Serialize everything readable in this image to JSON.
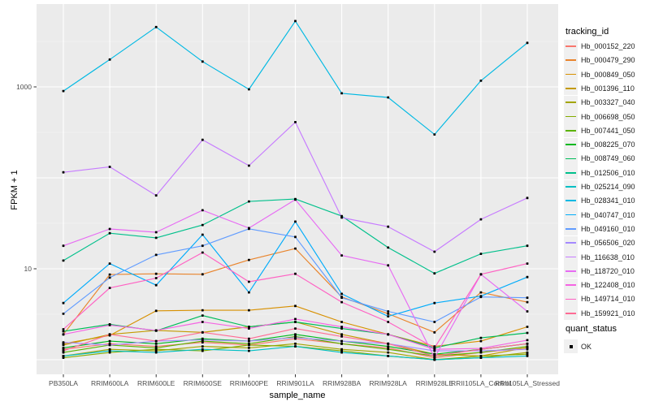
{
  "chart_data": {
    "type": "line",
    "title": "",
    "xlabel": "sample_name",
    "ylabel": "FPKM + 1",
    "y_scale": "log10",
    "ylim": [
      0.65,
      7800
    ],
    "y_ticks": [
      {
        "value": 10,
        "label": "10"
      },
      {
        "value": 1000,
        "label": "1000"
      }
    ],
    "y_gridlines_major": [
      1,
      10,
      100,
      1000
    ],
    "y_gridlines_minor": [
      3.162,
      31.62,
      316.2,
      3162
    ],
    "grid": true,
    "panel_bg": "#EBEBEB",
    "gridline_color": "#FFFFFF",
    "marker": "small-black-square",
    "legend_position": "right",
    "legend_title": "tracking_id",
    "categories": [
      "PB350LA",
      "RRIM600LA",
      "RRIM600LE",
      "RRIM600SE",
      "RRIM600PE",
      "RRIM901LA",
      "RRIM928BA",
      "RRIM928LA",
      "RRIM928LE",
      "RRII105LA_Control",
      "RRII105LA_Stressed"
    ],
    "series": [
      {
        "name": "Hb_000152_220",
        "color": "#F8766D",
        "values": [
          1.3,
          1.5,
          1.4,
          1.55,
          1.45,
          1.7,
          1.5,
          1.35,
          1.05,
          1.2,
          1.35
        ]
      },
      {
        "name": "Hb_000479_290",
        "color": "#E9842C",
        "values": [
          1.9,
          8.65,
          8.8,
          8.7,
          12.5,
          16.7,
          4.9,
          3.2,
          2.0,
          5.5,
          4.3
        ]
      },
      {
        "name": "Hb_000849_050",
        "color": "#D89000",
        "values": [
          1.5,
          1.85,
          3.45,
          3.5,
          3.5,
          3.9,
          2.6,
          1.9,
          1.4,
          1.6,
          2.3
        ]
      },
      {
        "name": "Hb_001396_110",
        "color": "#C49A00",
        "values": [
          1.45,
          1.9,
          2.1,
          2.0,
          2.3,
          2.6,
          1.9,
          1.5,
          1.15,
          1.1,
          1.36
        ]
      },
      {
        "name": "Hb_003327_040",
        "color": "#A3A500",
        "values": [
          1.1,
          1.3,
          1.25,
          1.4,
          1.35,
          1.5,
          1.3,
          1.2,
          1.0,
          1.05,
          1.2
        ]
      },
      {
        "name": "Hb_006698_050",
        "color": "#84AC00",
        "values": [
          1.05,
          1.2,
          1.3,
          1.25,
          1.45,
          1.4,
          1.25,
          1.1,
          1.0,
          1.1,
          1.15
        ]
      },
      {
        "name": "Hb_007441_050",
        "color": "#5BB300",
        "values": [
          1.2,
          1.45,
          1.35,
          1.6,
          1.5,
          1.8,
          1.5,
          1.3,
          1.1,
          1.2,
          1.4
        ]
      },
      {
        "name": "Hb_008225_070",
        "color": "#00B81F",
        "values": [
          1.35,
          1.6,
          1.5,
          1.7,
          1.6,
          1.9,
          1.6,
          1.4,
          1.15,
          1.3,
          1.5
        ]
      },
      {
        "name": "Hb_008749_060",
        "color": "#00BC59",
        "values": [
          2.05,
          2.45,
          2.08,
          3.06,
          2.3,
          2.6,
          2.2,
          1.9,
          1.35,
          1.74,
          1.97
        ]
      },
      {
        "name": "Hb_012506_010",
        "color": "#00C08B",
        "values": [
          12.3,
          24.6,
          21.9,
          30.3,
          55.0,
          58.5,
          38.0,
          17.1,
          8.9,
          14.6,
          17.9
        ]
      },
      {
        "name": "Hb_025214_090",
        "color": "#00BFC4",
        "values": [
          1.1,
          1.25,
          1.2,
          1.3,
          1.25,
          1.4,
          1.2,
          1.1,
          1.0,
          1.05,
          1.1
        ]
      },
      {
        "name": "Hb_028341_010",
        "color": "#00B9E3",
        "values": [
          900,
          2000,
          4550,
          1900,
          940,
          5300,
          850,
          765,
          300,
          1170,
          3050
        ]
      },
      {
        "name": "Hb_040747_010",
        "color": "#00ACFB",
        "values": [
          4.2,
          11.4,
          6.6,
          23.7,
          5.5,
          33.0,
          5.3,
          3.0,
          4.2,
          5.0,
          8.1
        ]
      },
      {
        "name": "Hb_049160_010",
        "color": "#619CFF",
        "values": [
          3.2,
          8.0,
          14.2,
          17.9,
          27.5,
          22.4,
          4.8,
          3.4,
          2.6,
          4.9,
          4.8
        ]
      },
      {
        "name": "Hb_056506_020",
        "color": "#A58AFF",
        "values": [
          1.55,
          1.45,
          1.6,
          1.65,
          1.6,
          1.75,
          1.6,
          1.5,
          1.25,
          1.25,
          1.3
        ]
      },
      {
        "name": "Hb_116638_010",
        "color": "#C77CFF",
        "values": [
          115,
          132,
          64,
          262,
          136,
          410,
          36.5,
          29,
          15.4,
          35,
          60
        ]
      },
      {
        "name": "Hb_118720_010",
        "color": "#E76BF3",
        "values": [
          17.9,
          27.4,
          25.2,
          44.0,
          28.0,
          57.6,
          14.0,
          10.9,
          1.05,
          8.7,
          3.4
        ]
      },
      {
        "name": "Hb_122408_010",
        "color": "#F564E3",
        "values": [
          1.9,
          2.4,
          2.1,
          2.6,
          2.2,
          2.8,
          2.3,
          1.9,
          1.3,
          1.33,
          1.64
        ]
      },
      {
        "name": "Hb_149714_010",
        "color": "#FF61C3",
        "values": [
          2.16,
          6.15,
          7.9,
          15.1,
          7.2,
          8.8,
          4.3,
          2.6,
          1.35,
          8.7,
          11.4
        ]
      },
      {
        "name": "Hb_159921_010",
        "color": "#FF6B94",
        "values": [
          1.25,
          1.9,
          1.6,
          2.0,
          1.7,
          2.2,
          1.8,
          1.5,
          1.1,
          1.3,
          1.5
        ]
      }
    ],
    "quant_legend": {
      "title": "quant_status",
      "items": [
        {
          "label": "OK",
          "symbol": "black-square"
        }
      ]
    }
  }
}
